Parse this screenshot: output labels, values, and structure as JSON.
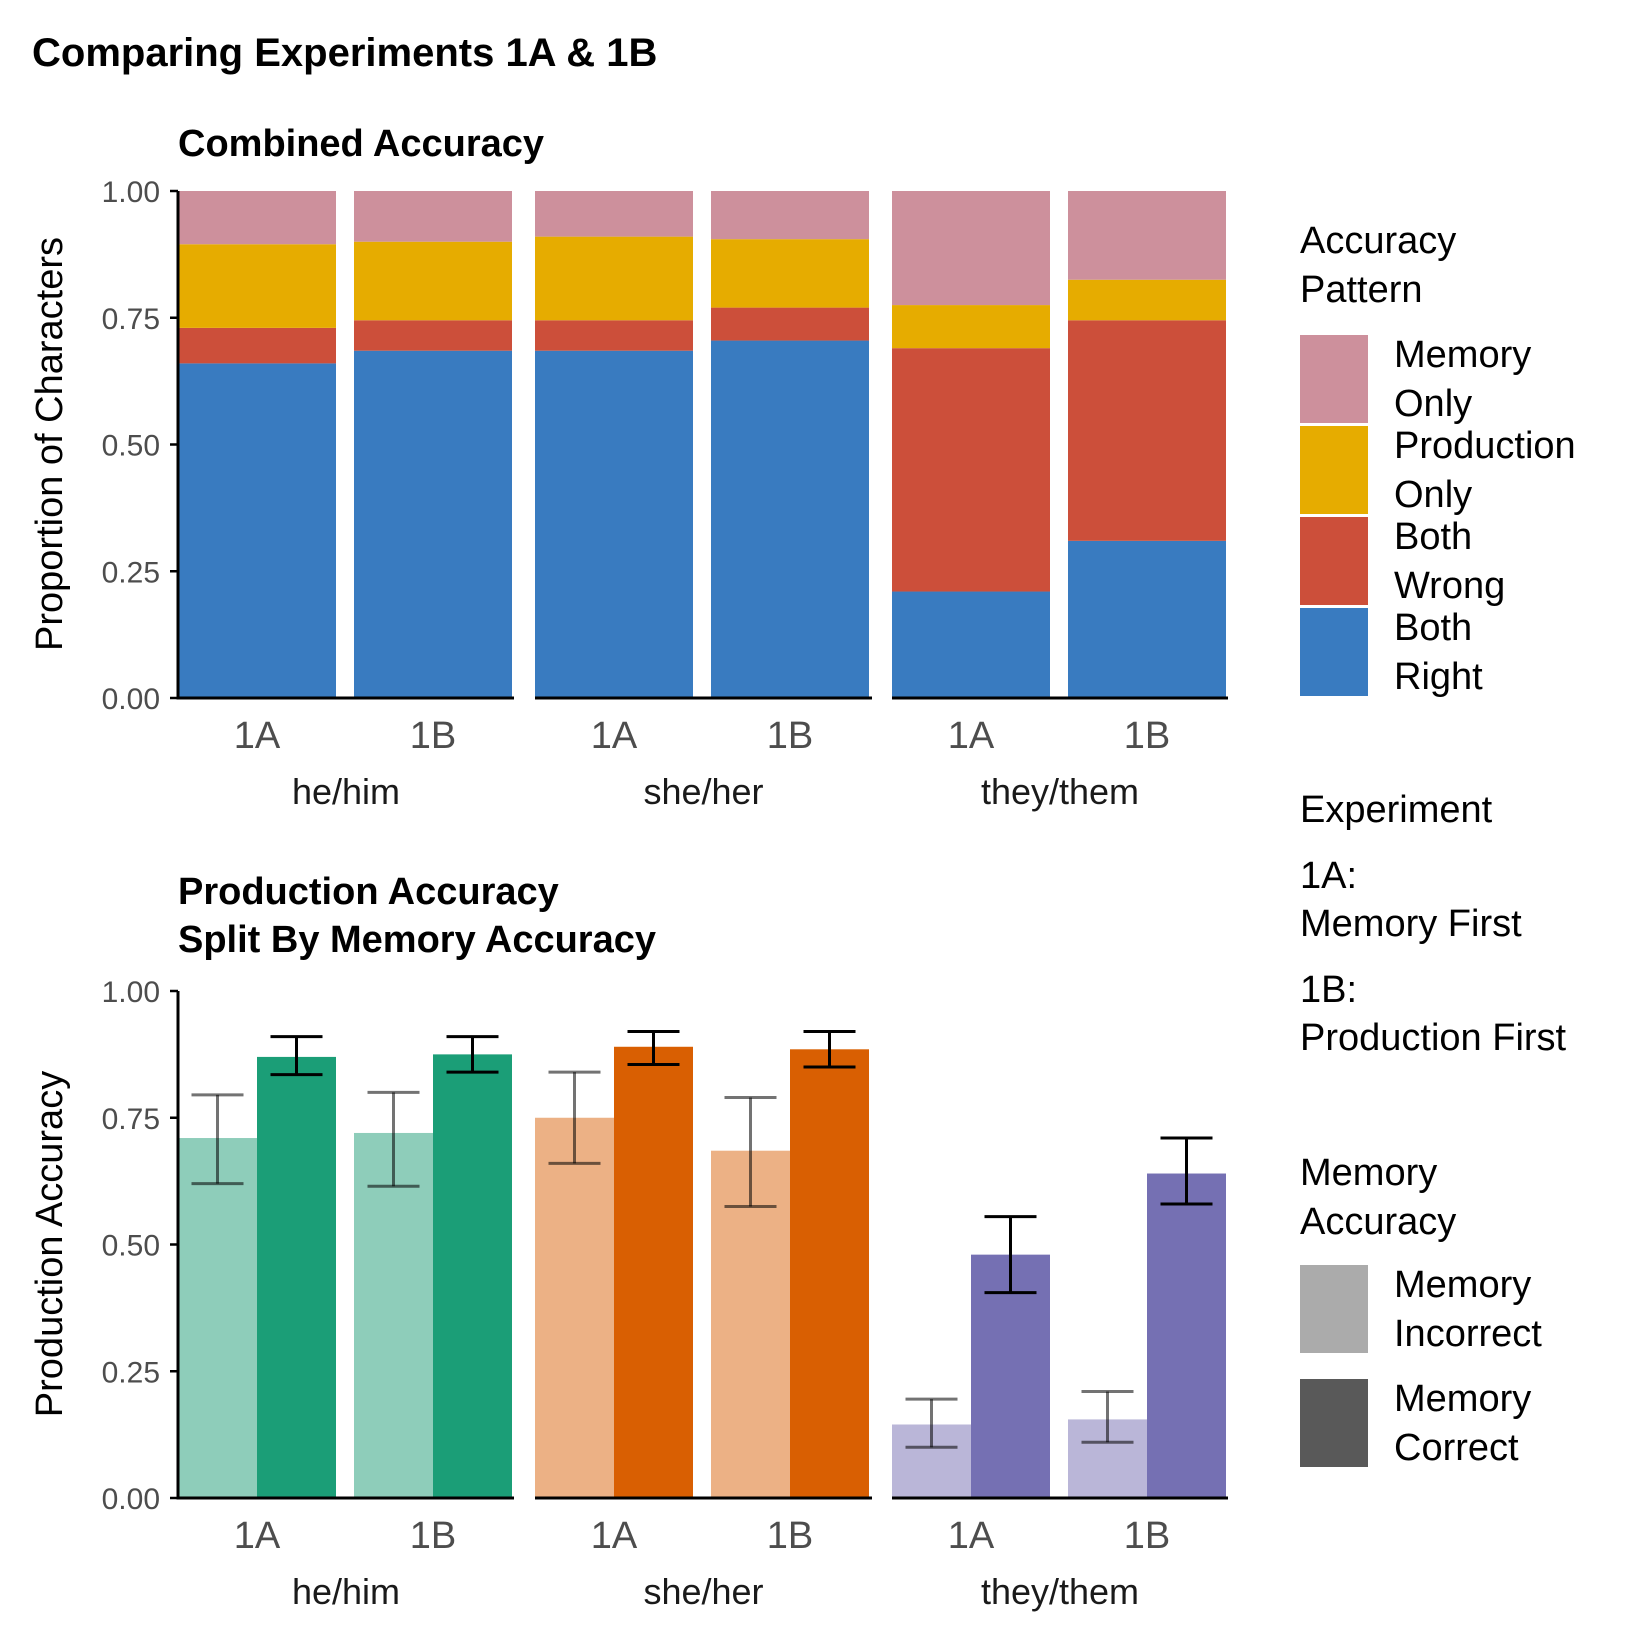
{
  "figure": {
    "title": "Comparing Experiments 1A & 1B"
  },
  "legends": {
    "accuracy_pattern": {
      "title_lines": [
        "Accuracy",
        "Pattern"
      ],
      "items": [
        {
          "lines": [
            "Memory",
            "Only"
          ],
          "color": "#CD909C"
        },
        {
          "lines": [
            "Production",
            "Only"
          ],
          "color": "#E6AC00"
        },
        {
          "lines": [
            "Both",
            "Wrong"
          ],
          "color": "#CC4F3A"
        },
        {
          "lines": [
            "Both",
            "Right"
          ],
          "color": "#397BC0"
        }
      ]
    },
    "experiment": {
      "title": "Experiment",
      "items": [
        {
          "lines": [
            "1A:",
            "Memory First"
          ]
        },
        {
          "lines": [
            "1B:",
            "Production First"
          ]
        }
      ]
    },
    "memory_accuracy": {
      "title_lines": [
        "Memory",
        "Accuracy"
      ],
      "items": [
        {
          "lines": [
            "Memory",
            "Incorrect"
          ],
          "color": "#ABABAB"
        },
        {
          "lines": [
            "Memory",
            "Correct"
          ],
          "color": "#595959"
        }
      ]
    }
  },
  "chart_data": [
    {
      "type": "bar",
      "stacked": true,
      "title_lines": [
        "Combined Accuracy"
      ],
      "ylabel": "Proportion of Characters",
      "ylim": [
        0,
        1
      ],
      "yticks": [
        "0.00",
        "0.25",
        "0.50",
        "0.75",
        "1.00"
      ],
      "facets": [
        "he/him",
        "she/her",
        "they/them"
      ],
      "categories": [
        "1A",
        "1B"
      ],
      "stack_order_bottom_to_top": [
        "Both Right",
        "Both Wrong",
        "Production Only",
        "Memory Only"
      ],
      "series": [
        {
          "name": "Both Right",
          "color": "#397BC0",
          "values": [
            [
              0.66,
              0.685
            ],
            [
              0.685,
              0.705
            ],
            [
              0.21,
              0.31
            ]
          ]
        },
        {
          "name": "Both Wrong",
          "color": "#CC4F3A",
          "values": [
            [
              0.07,
              0.06
            ],
            [
              0.06,
              0.065
            ],
            [
              0.48,
              0.435
            ]
          ]
        },
        {
          "name": "Production Only",
          "color": "#E6AC00",
          "values": [
            [
              0.165,
              0.155
            ],
            [
              0.165,
              0.135
            ],
            [
              0.085,
              0.08
            ]
          ]
        },
        {
          "name": "Memory Only",
          "color": "#CD909C",
          "values": [
            [
              0.105,
              0.1
            ],
            [
              0.09,
              0.095
            ],
            [
              0.225,
              0.175
            ]
          ]
        }
      ]
    },
    {
      "type": "bar",
      "title_lines": [
        "Production Accuracy",
        "Split By Memory Accuracy"
      ],
      "ylabel": "Production Accuracy",
      "ylim": [
        0,
        1
      ],
      "yticks": [
        "0.00",
        "0.25",
        "0.50",
        "0.75",
        "1.00"
      ],
      "facets": [
        "he/him",
        "she/her",
        "they/them"
      ],
      "categories": [
        "1A",
        "1B"
      ],
      "facet_colors": [
        {
          "incorrect": "#8ECDBA",
          "correct": "#1B9E77"
        },
        {
          "incorrect": "#ECB185",
          "correct": "#D95F02"
        },
        {
          "incorrect": "#BAB6D8",
          "correct": "#7570B3"
        }
      ],
      "series": [
        {
          "name": "Memory Incorrect",
          "values": [
            [
              0.71,
              0.72
            ],
            [
              0.75,
              0.685
            ],
            [
              0.145,
              0.155
            ]
          ],
          "err_low": [
            [
              0.62,
              0.615
            ],
            [
              0.66,
              0.575
            ],
            [
              0.1,
              0.11
            ]
          ],
          "err_high": [
            [
              0.795,
              0.8
            ],
            [
              0.84,
              0.79
            ],
            [
              0.195,
              0.21
            ]
          ]
        },
        {
          "name": "Memory Correct",
          "values": [
            [
              0.87,
              0.875
            ],
            [
              0.89,
              0.885
            ],
            [
              0.48,
              0.64
            ]
          ],
          "err_low": [
            [
              0.835,
              0.84
            ],
            [
              0.855,
              0.85
            ],
            [
              0.405,
              0.58
            ]
          ],
          "err_high": [
            [
              0.91,
              0.91
            ],
            [
              0.92,
              0.92
            ],
            [
              0.555,
              0.71
            ]
          ]
        }
      ]
    }
  ]
}
